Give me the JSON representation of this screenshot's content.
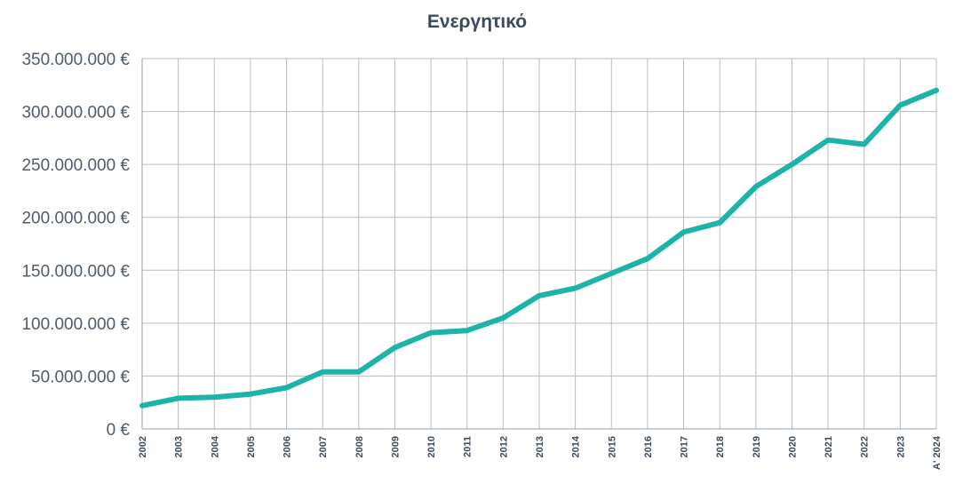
{
  "chart_data": {
    "type": "line",
    "title": "Ενεργητικό",
    "xlabel": "",
    "ylabel": "",
    "categories": [
      "2002",
      "2003",
      "2004",
      "2005",
      "2006",
      "2007",
      "2008",
      "2009",
      "2010",
      "2011",
      "2012",
      "2013",
      "2014",
      "2015",
      "2016",
      "2017",
      "2018",
      "2019",
      "2020",
      "2021",
      "2022",
      "2023",
      "Α' 2024"
    ],
    "series": [
      {
        "values": [
          22000000,
          29000000,
          30000000,
          33000000,
          39000000,
          54000000,
          54000000,
          77000000,
          91000000,
          93000000,
          105000000,
          126000000,
          133000000,
          147000000,
          161000000,
          186000000,
          195000000,
          229000000,
          250000000,
          273000000,
          269000000,
          306000000,
          320000000
        ]
      }
    ],
    "ylim": [
      0,
      350000000
    ],
    "yticks": [
      0,
      50000000,
      100000000,
      150000000,
      200000000,
      250000000,
      300000000,
      350000000
    ],
    "ytick_labels": [
      "0 €",
      "50.000.000 €",
      "100.000.000 €",
      "150.000.000 €",
      "200.000.000 €",
      "250.000.000 €",
      "300.000.000 €",
      "350.000.000 €"
    ],
    "grid": true,
    "legend": "none",
    "line_color": "#1db3a8"
  }
}
